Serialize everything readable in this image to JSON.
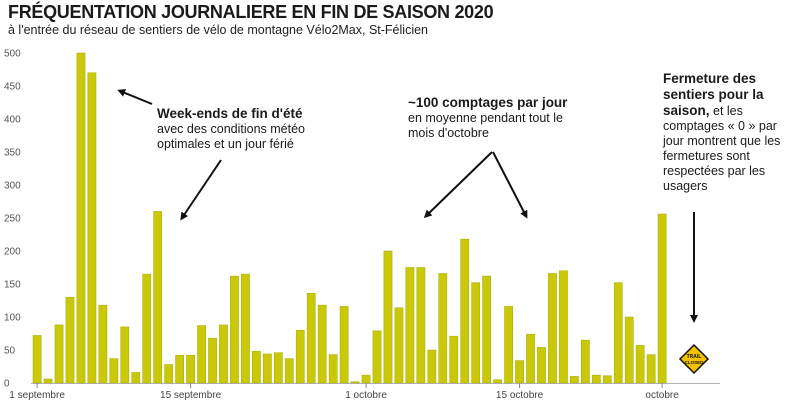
{
  "title": "FRÉQUENTATION JOURNALIERE EN FIN DE SAISON 2020",
  "subtitle": "à l'entrée du réseau de sentiers de vélo de montagne Vélo2Max, St-Félicien",
  "colors": {
    "bar": "#c9c90a",
    "bar_stroke": "#a8a800",
    "arrow": "#111111",
    "sign_fill": "#f2c200",
    "sign_stroke": "#111111"
  },
  "annotations": {
    "weekend": {
      "bold": "Week-ends de fin d'été",
      "text": "avec des conditions météo optimales et un jour férié"
    },
    "october": {
      "bold": "~100 comptages par jour",
      "text": "en moyenne pendant tout le mois d'octobre"
    },
    "closure": {
      "bold": "Fermeture des sentiers pour la saison,",
      "text": " et les comptages « 0 » par jour montrent que les fermetures sont respectées par les usagers"
    }
  },
  "sign": {
    "line1": "TRAIL",
    "line2": "CLOSED"
  },
  "chart_data": {
    "type": "bar",
    "ylim": [
      0,
      500
    ],
    "yticks": [
      0,
      50,
      100,
      150,
      200,
      250,
      300,
      350,
      400,
      450,
      500
    ],
    "x_tick_labels": [
      {
        "label": "1 septembre",
        "index": 0
      },
      {
        "label": "15 septembre",
        "index": 14
      },
      {
        "label": "1 octobre",
        "index": 30
      },
      {
        "label": "15 octobre",
        "index": 44
      },
      {
        "label": "octobre",
        "index": 57
      }
    ],
    "values": [
      72,
      6,
      88,
      130,
      500,
      470,
      118,
      37,
      85,
      16,
      165,
      260,
      28,
      42,
      42,
      87,
      68,
      88,
      162,
      165,
      48,
      44,
      46,
      37,
      80,
      136,
      118,
      43,
      116,
      2,
      12,
      79,
      200,
      114,
      175,
      175,
      50,
      166,
      71,
      218,
      152,
      162,
      5,
      116,
      34,
      74,
      54,
      166,
      170,
      10,
      65,
      12,
      11,
      152,
      100,
      57,
      43,
      256
    ]
  }
}
